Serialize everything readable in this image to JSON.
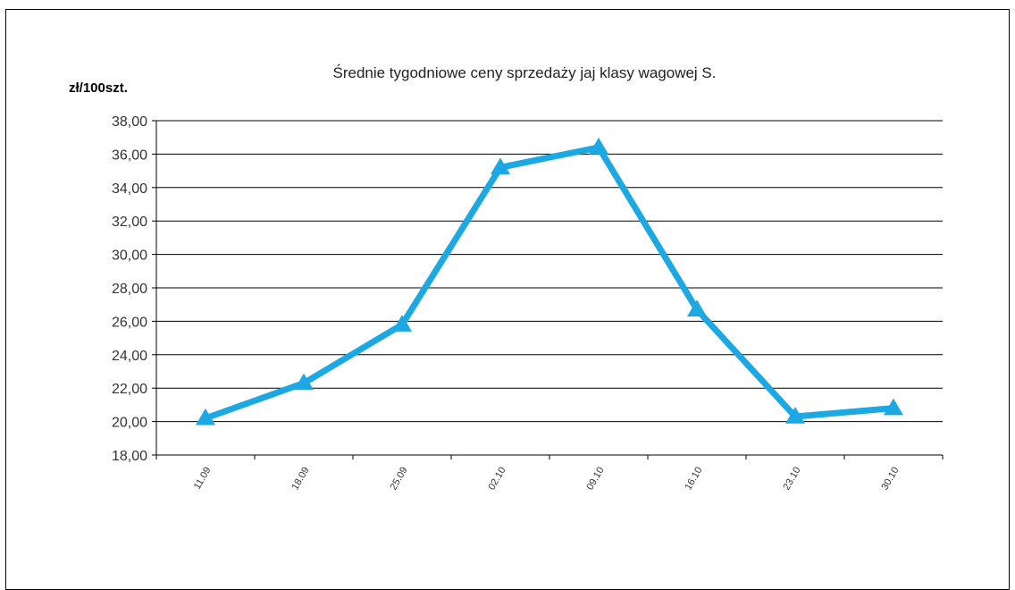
{
  "chart_data": {
    "type": "line",
    "title": "Średnie  tygodniowe  ceny  sprzedaży  jaj  klasy  wagowej  S.",
    "ylabel": "zł/100szt.",
    "xlabel": "",
    "categories": [
      "11.09",
      "18.09",
      "25.09",
      "02.10",
      "09.10",
      "16.10",
      "23.10",
      "30.10"
    ],
    "series": [
      {
        "values": [
          20.2,
          22.3,
          25.8,
          35.2,
          36.4,
          26.7,
          20.3,
          20.8
        ]
      }
    ],
    "ylim": [
      18,
      38
    ],
    "ytick_labels": [
      "18,00",
      "20,00",
      "22,00",
      "24,00",
      "26,00",
      "28,00",
      "30,00",
      "32,00",
      "34,00",
      "36,00",
      "38,00"
    ],
    "grid": true,
    "marker": "triangle",
    "colors": {
      "series": "#1ba8e3",
      "grid": "#000000"
    }
  }
}
